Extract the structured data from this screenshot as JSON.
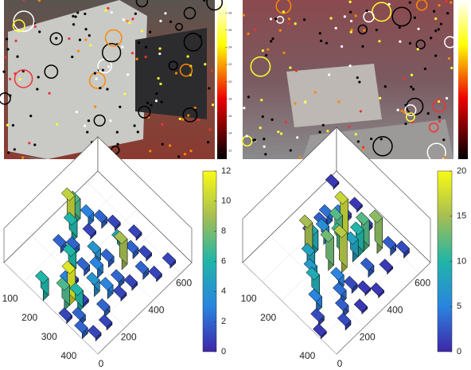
{
  "chart_data": [
    {
      "type": "image-colorbar",
      "colormap": "hot",
      "clim": [
        11,
        29.5
      ],
      "cticks": [
        12,
        14,
        16,
        18,
        20,
        22,
        24,
        26,
        28
      ]
    },
    {
      "type": "bar3d",
      "xlim": [
        0,
        680
      ],
      "ylim": [
        0,
        480
      ],
      "zlim": [
        0,
        12
      ],
      "xticks": [
        0,
        200,
        400,
        600
      ],
      "yticks": [
        100,
        200,
        300,
        400
      ],
      "cticks": [
        0,
        2,
        4,
        6,
        8,
        10,
        12
      ],
      "x": [
        380,
        420,
        340,
        300,
        460,
        500,
        420,
        540,
        260,
        220,
        180,
        140,
        100,
        60,
        100,
        20,
        60,
        140,
        300,
        340,
        380,
        420,
        460,
        500,
        540,
        260,
        220,
        180,
        140,
        60,
        20,
        300,
        340,
        380,
        460,
        580,
        600,
        20,
        500,
        260
      ],
      "y": [
        60,
        60,
        100,
        140,
        100,
        140,
        140,
        180,
        100,
        180,
        220,
        220,
        260,
        260,
        300,
        300,
        340,
        300,
        260,
        220,
        260,
        300,
        260,
        300,
        340,
        340,
        300,
        380,
        420,
        420,
        380,
        380,
        340,
        380,
        380,
        260,
        420,
        180,
        420,
        220
      ],
      "values": [
        10,
        7,
        6,
        2,
        3,
        2,
        1,
        1,
        2,
        6,
        1,
        3,
        11,
        7,
        6,
        1,
        2,
        1,
        3,
        4,
        2,
        9,
        5,
        2,
        1,
        3,
        4,
        2,
        1,
        1,
        2,
        1,
        2,
        1,
        2,
        1,
        1,
        6,
        1,
        2
      ]
    },
    {
      "type": "bar3d",
      "xlim": [
        0,
        680
      ],
      "ylim": [
        0,
        480
      ],
      "zlim": [
        0,
        20
      ],
      "xticks": [
        0,
        200,
        400,
        600
      ],
      "yticks": [
        100,
        200,
        400
      ],
      "cticks": [
        0,
        5,
        10,
        15,
        20
      ],
      "x": [
        620,
        420,
        460,
        500,
        540,
        460,
        420,
        380,
        340,
        300,
        260,
        220,
        180,
        140,
        100,
        60,
        20,
        300,
        340,
        380,
        420,
        460,
        500,
        540,
        580,
        620,
        260,
        220,
        180,
        140,
        300,
        340,
        380,
        260,
        420,
        500,
        580,
        620
      ],
      "y": [
        20,
        100,
        100,
        140,
        140,
        180,
        180,
        140,
        100,
        140,
        140,
        180,
        220,
        260,
        300,
        340,
        380,
        220,
        260,
        220,
        260,
        260,
        260,
        300,
        340,
        380,
        300,
        340,
        380,
        420,
        340,
        380,
        420,
        420,
        340,
        380,
        220,
        140
      ],
      "values": [
        1,
        3,
        4,
        5,
        2,
        17,
        12,
        6,
        3,
        9,
        15,
        8,
        7,
        9,
        5,
        2,
        1,
        13,
        16,
        11,
        8,
        10,
        12,
        14,
        3,
        2,
        5,
        4,
        3,
        2,
        2,
        1,
        1,
        1,
        3,
        1,
        2,
        1
      ]
    }
  ]
}
